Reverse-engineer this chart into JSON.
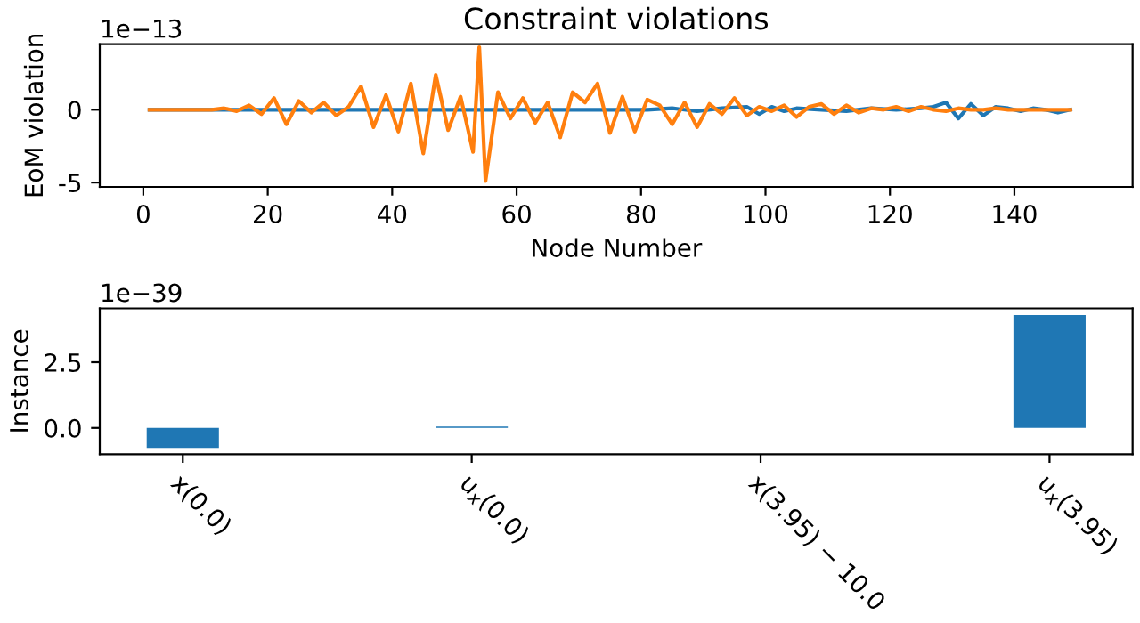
{
  "chart_data": [
    {
      "type": "line",
      "title": "Constraint violations",
      "xlabel": "Node Number",
      "ylabel": "EoM violation",
      "annotations": [
        "1e−13"
      ],
      "xlim": [
        -7,
        159
      ],
      "xticks": [
        0,
        20,
        40,
        60,
        80,
        100,
        120,
        140
      ],
      "ylim": [
        -5.3,
        4.5
      ],
      "yticks": [
        -5,
        0
      ],
      "grid": false,
      "legend": false,
      "series": [
        {
          "color": "#1f77b4",
          "x": [
            1,
            5,
            9,
            13,
            17,
            21,
            25,
            29,
            33,
            37,
            41,
            45,
            49,
            53,
            57,
            61,
            65,
            69,
            73,
            77,
            81,
            85,
            89,
            93,
            97,
            99,
            101,
            103,
            105,
            109,
            113,
            117,
            121,
            125,
            127,
            129,
            131,
            133,
            135,
            137,
            139,
            141,
            143,
            145,
            147,
            149
          ],
          "values": [
            0,
            0,
            0,
            0,
            0,
            0,
            0,
            0,
            0,
            0,
            0,
            0,
            0,
            0,
            0,
            0,
            0,
            0,
            0,
            0,
            0,
            0.1,
            -0.1,
            0.1,
            0.2,
            -0.3,
            0.2,
            -0.1,
            0.1,
            0,
            -0.1,
            0.1,
            0,
            0.1,
            0.2,
            0.5,
            -0.6,
            0.4,
            -0.4,
            0.2,
            0.1,
            -0.1,
            0.1,
            0,
            -0.2,
            0
          ]
        },
        {
          "color": "#ff7f0e",
          "x": [
            1,
            3,
            5,
            7,
            9,
            11,
            13,
            15,
            17,
            19,
            21,
            23,
            25,
            27,
            29,
            31,
            33,
            35,
            37,
            39,
            41,
            43,
            45,
            47,
            49,
            51,
            53,
            54,
            55,
            57,
            59,
            61,
            63,
            65,
            67,
            69,
            71,
            73,
            75,
            77,
            79,
            81,
            83,
            85,
            87,
            89,
            91,
            93,
            95,
            97,
            99,
            101,
            103,
            105,
            107,
            109,
            111,
            113,
            115,
            117,
            119,
            121,
            123,
            125,
            127,
            129,
            131,
            133,
            135,
            137,
            139,
            141,
            143,
            145,
            147,
            149
          ],
          "values": [
            0,
            0,
            0,
            0,
            0,
            0,
            0.1,
            -0.1,
            0.3,
            -0.3,
            0.8,
            -1.0,
            0.6,
            -0.2,
            0.5,
            -0.4,
            0.2,
            1.6,
            -1.2,
            1.0,
            -1.5,
            1.8,
            -3.0,
            2.4,
            -1.4,
            0.9,
            -2.9,
            4.3,
            -4.9,
            1.2,
            -0.6,
            0.8,
            -0.9,
            0.5,
            -1.9,
            1.2,
            0.5,
            1.8,
            -1.6,
            0.9,
            -1.5,
            0.7,
            0.3,
            -1.0,
            0.5,
            -1.2,
            0.4,
            -0.3,
            0.8,
            -0.4,
            0.2,
            -0.1,
            0.3,
            -0.5,
            0.2,
            0.4,
            -0.3,
            0.3,
            -0.2,
            0.1,
            0,
            0.2,
            -0.1,
            0.2,
            0,
            -0.1,
            0.1,
            0,
            0,
            0.1,
            0,
            0,
            0,
            0,
            0,
            0
          ]
        }
      ]
    },
    {
      "type": "bar",
      "ylabel": "Instance",
      "annotations": [
        "1e−39"
      ],
      "categories": [
        "x(0.0)",
        "u$_{x}$(0.0)",
        "x(3.95) − 10.0",
        "u$_{x}$(3.95)"
      ],
      "values": [
        -0.76,
        0.05,
        0,
        4.3
      ],
      "color": "#1f77b4",
      "ylim": [
        -1.0,
        4.55
      ],
      "yticks": [
        {
          "value": 0,
          "label": "0.0"
        },
        {
          "value": 2.5,
          "label": "2.5"
        }
      ],
      "grid": false,
      "legend": false
    }
  ]
}
